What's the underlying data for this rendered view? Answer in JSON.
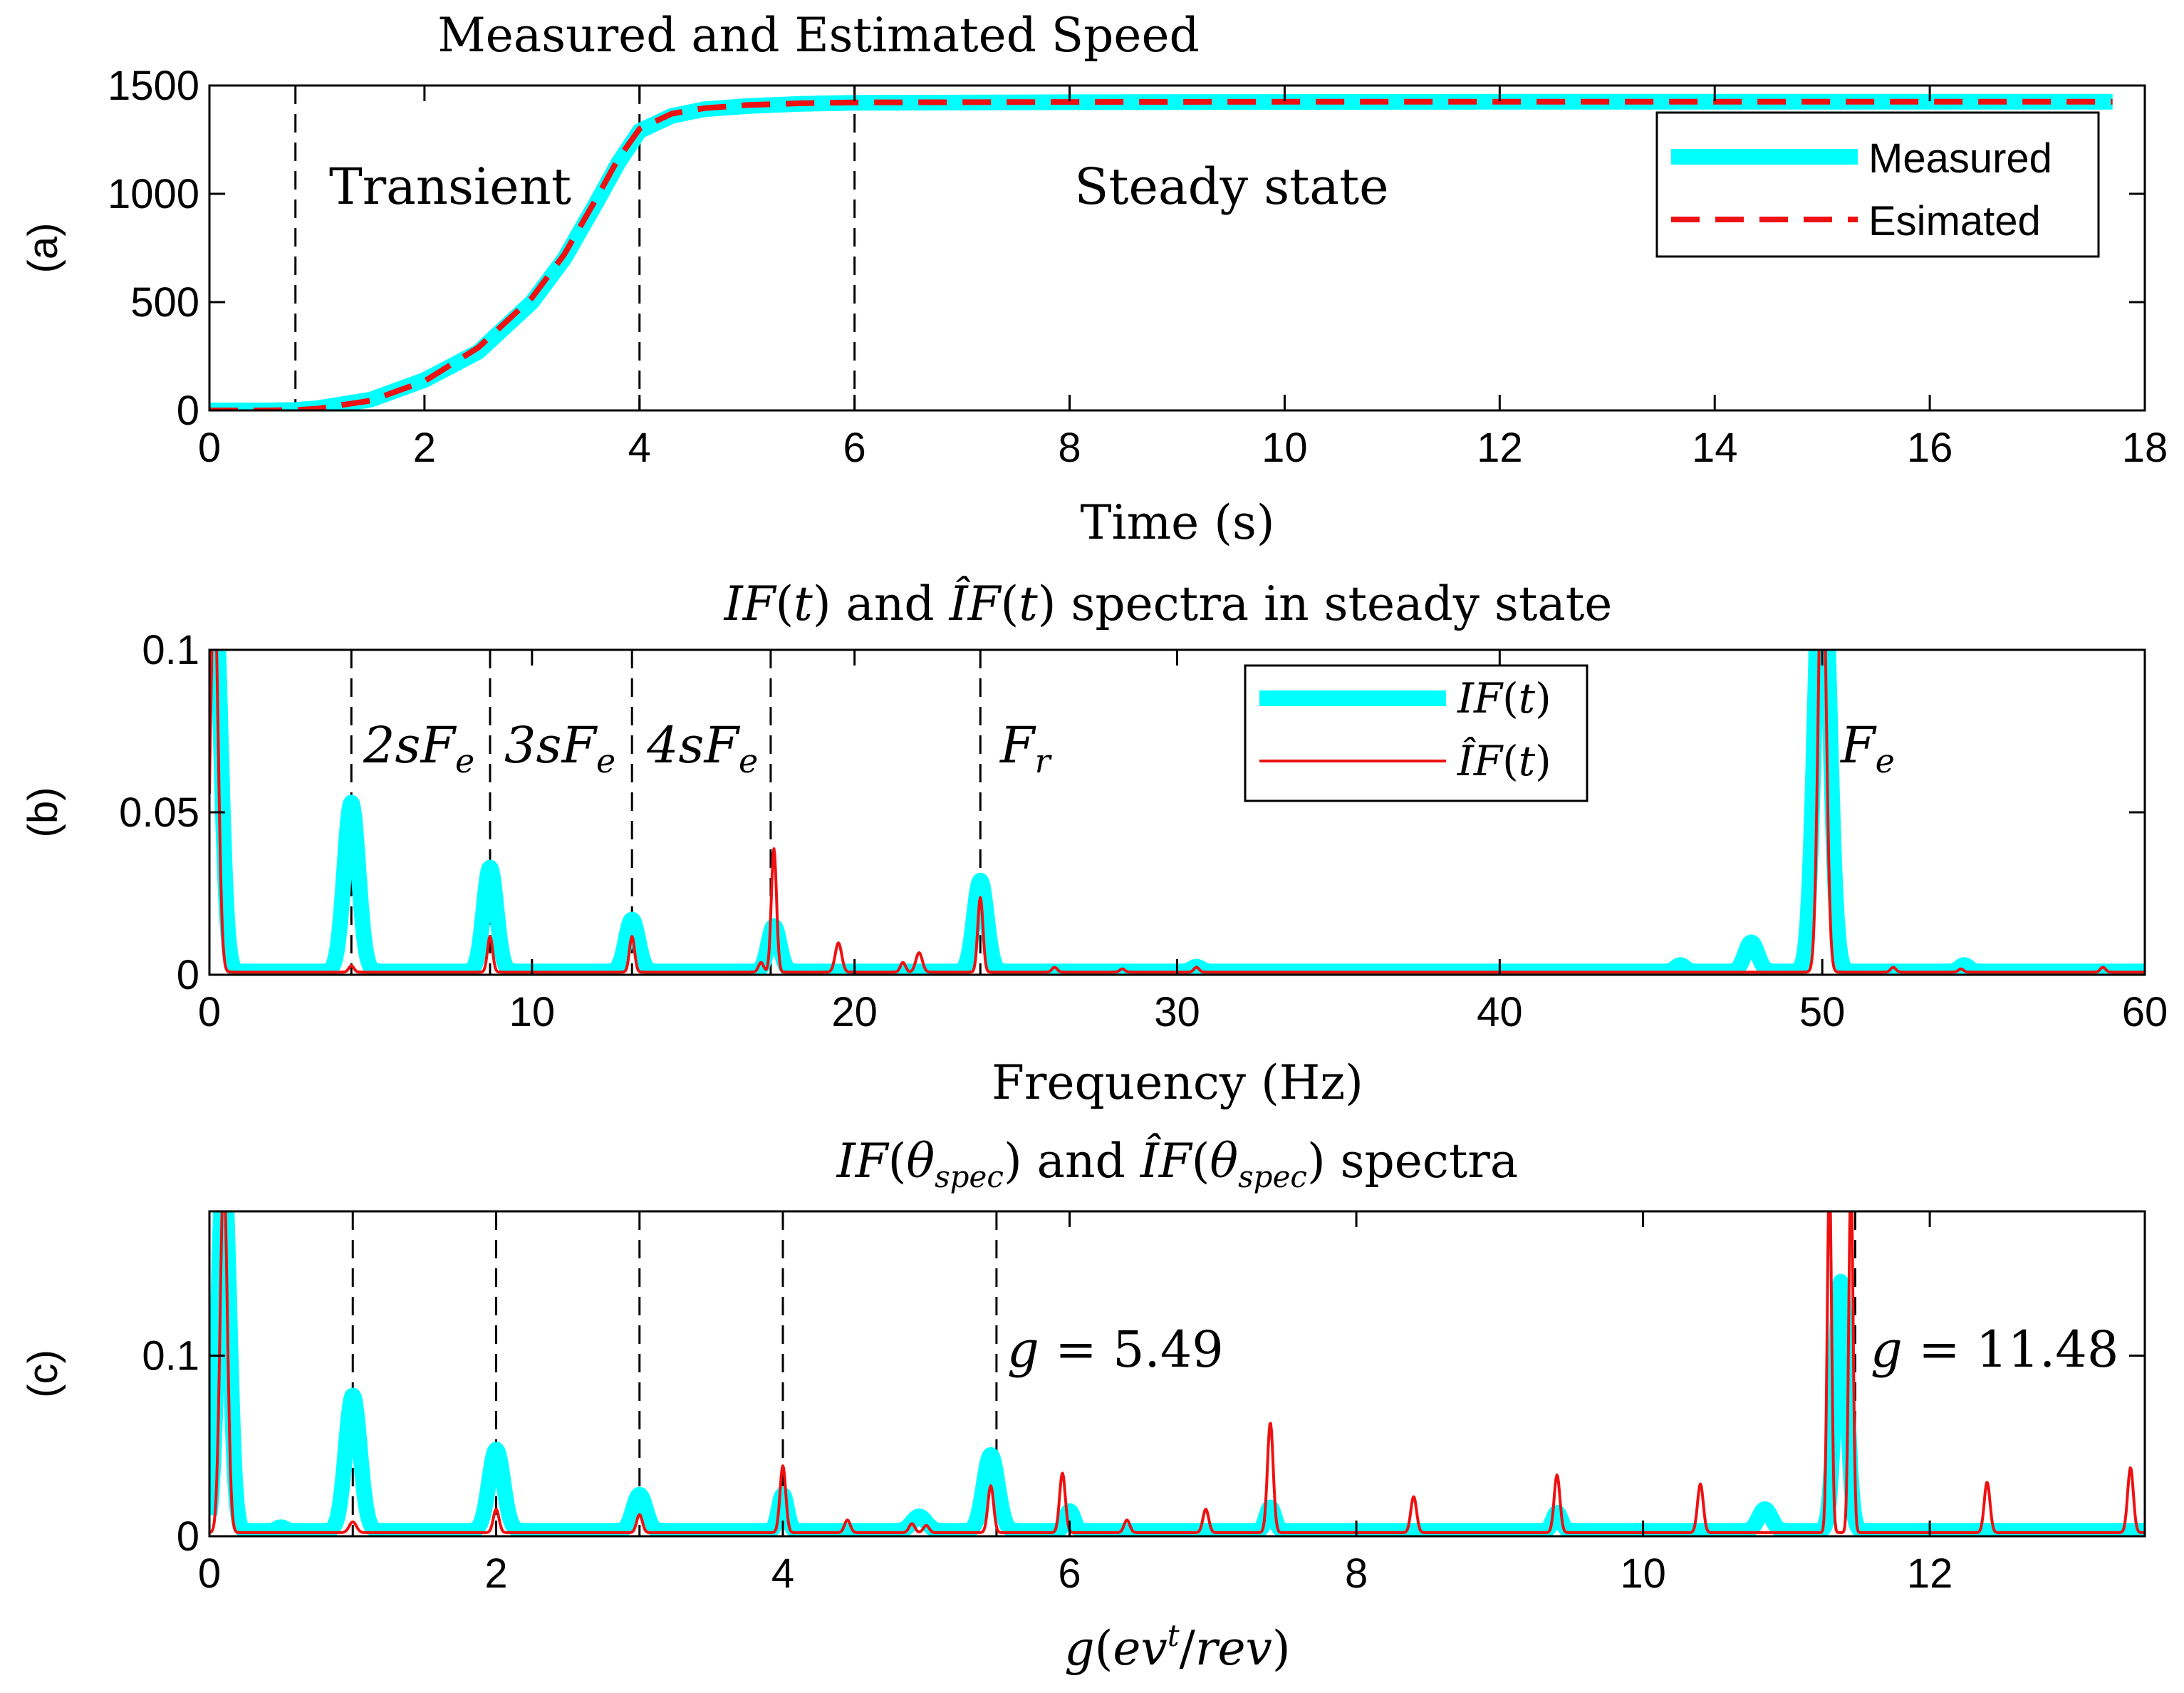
{
  "chart_data": [
    {
      "id": "a",
      "type": "line",
      "title": "Measured and Estimated Speed",
      "xlabel": "Time (s)",
      "ylabel": "(a)",
      "xlim": [
        0,
        18
      ],
      "ylim": [
        0,
        1500
      ],
      "xticks": [
        "0",
        "2",
        "4",
        "6",
        "8",
        "10",
        "12",
        "14",
        "16",
        "18"
      ],
      "yticks": [
        "0",
        "500",
        "1000",
        "1500"
      ],
      "vlines": [
        0.8,
        4,
        6
      ],
      "annotations": [
        {
          "text": "Transient",
          "x": 2.25,
          "y": 1010
        },
        {
          "text": "Steady state",
          "x": 9.5,
          "y": 1010
        }
      ],
      "legend": {
        "position": "top-right",
        "entries": [
          "Measured",
          "Esimated"
        ]
      },
      "series": [
        {
          "name": "Measured",
          "color": "#00ffff",
          "style": "solid-thick",
          "x": [
            0,
            0.5,
            0.8,
            1.0,
            1.5,
            2.0,
            2.5,
            3.0,
            3.3,
            3.6,
            3.8,
            4.0,
            4.3,
            4.6,
            5.0,
            5.5,
            6.0,
            8,
            10,
            12,
            14,
            16,
            17.7
          ],
          "y": [
            0,
            0,
            2,
            10,
            50,
            140,
            270,
            500,
            700,
            960,
            1140,
            1290,
            1360,
            1390,
            1405,
            1415,
            1420,
            1423,
            1424,
            1425,
            1425,
            1425,
            1425
          ]
        },
        {
          "name": "Esimated",
          "color": "#ee1111",
          "style": "dashed",
          "x": [
            0,
            0.5,
            0.8,
            1.0,
            1.5,
            2.0,
            2.5,
            3.0,
            3.3,
            3.6,
            3.8,
            4.0,
            4.3,
            4.6,
            5.0,
            5.5,
            6.0,
            8,
            10,
            12,
            14,
            16,
            17.7
          ],
          "y": [
            0,
            0,
            2,
            8,
            45,
            135,
            290,
            520,
            720,
            980,
            1160,
            1300,
            1370,
            1395,
            1410,
            1418,
            1422,
            1424,
            1425,
            1425,
            1425,
            1425,
            1425
          ]
        }
      ]
    },
    {
      "id": "b",
      "type": "line",
      "title": "IF(t) and ÎF(t) spectra in steady state",
      "xlabel": "Frequency (Hz)",
      "ylabel": "(b)",
      "xlim": [
        0,
        60
      ],
      "ylim": [
        0,
        0.1
      ],
      "xticks": [
        "0",
        "10",
        "20",
        "30",
        "40",
        "50",
        "60"
      ],
      "yticks": [
        "0",
        "0.05",
        "0.1"
      ],
      "vlines": [
        4.4,
        8.7,
        13.1,
        17.4,
        23.9
      ],
      "annotations": [
        {
          "text": "2sFe",
          "x": 6.5,
          "y": 0.067
        },
        {
          "text": "3sFe",
          "x": 10.9,
          "y": 0.067
        },
        {
          "text": "4sFe",
          "x": 15.3,
          "y": 0.067
        },
        {
          "text": "Fr",
          "x": 25.2,
          "y": 0.067
        },
        {
          "text": "Fe",
          "x": 51.7,
          "y": 0.067
        }
      ],
      "legend": {
        "position": "top-center",
        "entries": [
          "IF(t)",
          "ÎF(t)"
        ]
      },
      "series": [
        {
          "name": "IF(t)",
          "color": "#00ffff",
          "style": "solid-thick",
          "baseline": 0.001,
          "peaks": [
            [
              0.15,
              0.12,
              0.2
            ],
            [
              4.4,
              0.052,
              0.22
            ],
            [
              8.7,
              0.032,
              0.2
            ],
            [
              13.1,
              0.016,
              0.2
            ],
            [
              17.5,
              0.014,
              0.18
            ],
            [
              23.9,
              0.028,
              0.2
            ],
            [
              47.8,
              0.009,
              0.2
            ],
            [
              50.0,
              0.14,
              0.22
            ],
            [
              45.6,
              0.002,
              0.15
            ],
            [
              54.4,
              0.002,
              0.15
            ],
            [
              30.6,
              0.0015,
              0.15
            ]
          ]
        },
        {
          "name": "ÎF(t)",
          "color": "#ee1111",
          "style": "solid-thin",
          "baseline": 0.0008,
          "peaks": [
            [
              0.15,
              0.12,
              0.12
            ],
            [
              4.4,
              0.002,
              0.08
            ],
            [
              8.7,
              0.011,
              0.08
            ],
            [
              13.1,
              0.011,
              0.08
            ],
            [
              17.1,
              0.003,
              0.08
            ],
            [
              17.5,
              0.038,
              0.08
            ],
            [
              19.5,
              0.009,
              0.1
            ],
            [
              21.5,
              0.003,
              0.08
            ],
            [
              22.0,
              0.006,
              0.1
            ],
            [
              23.9,
              0.023,
              0.08
            ],
            [
              26.2,
              0.0015,
              0.08
            ],
            [
              28.3,
              0.001,
              0.08
            ],
            [
              30.6,
              0.0015,
              0.08
            ],
            [
              50.0,
              0.14,
              0.12
            ],
            [
              52.2,
              0.0015,
              0.08
            ],
            [
              54.3,
              0.001,
              0.08
            ],
            [
              58.7,
              0.0015,
              0.08
            ]
          ]
        }
      ]
    },
    {
      "id": "c",
      "type": "line",
      "title": "IF(θspec) and ÎF(θspec) spectra",
      "xlabel": "g(evt/rev)",
      "ylabel": "(c)",
      "xlim": [
        0,
        13.5
      ],
      "ylim": [
        0,
        0.18
      ],
      "xticks": [
        "0",
        "2",
        "4",
        "6",
        "8",
        "10",
        "12"
      ],
      "yticks": [
        "0",
        "0.1"
      ],
      "vlines": [
        1,
        2,
        3,
        4,
        5.49,
        11.48
      ],
      "annotations": [
        {
          "text": "g = 5.49",
          "x": 6.2,
          "y": 0.1
        },
        {
          "text": "g = 11.48",
          "x": 12.4,
          "y": 0.1
        }
      ],
      "series": [
        {
          "name": "IF(θspec)",
          "color": "#00ffff",
          "style": "solid-thick",
          "baseline": 0.003,
          "peaks": [
            [
              0.1,
              0.2,
              0.04
            ],
            [
              0.5,
              0.002,
              0.03
            ],
            [
              1.0,
              0.075,
              0.05
            ],
            [
              2.0,
              0.045,
              0.05
            ],
            [
              3.0,
              0.02,
              0.045
            ],
            [
              4.0,
              0.02,
              0.03
            ],
            [
              4.95,
              0.008,
              0.05
            ],
            [
              5.45,
              0.042,
              0.05
            ],
            [
              6.0,
              0.011,
              0.03
            ],
            [
              7.4,
              0.013,
              0.03
            ],
            [
              9.4,
              0.01,
              0.03
            ],
            [
              10.85,
              0.012,
              0.045
            ],
            [
              11.38,
              0.138,
              0.04
            ]
          ]
        },
        {
          "name": "ÎF(θspec)",
          "color": "#ee1111",
          "style": "solid-thin",
          "baseline": 0.002,
          "peaks": [
            [
              0.1,
              0.2,
              0.025
            ],
            [
              1.0,
              0.006,
              0.025
            ],
            [
              2.0,
              0.013,
              0.02
            ],
            [
              3.0,
              0.01,
              0.02
            ],
            [
              4.0,
              0.037,
              0.02
            ],
            [
              4.45,
              0.007,
              0.02
            ],
            [
              4.9,
              0.005,
              0.02
            ],
            [
              5.0,
              0.004,
              0.02
            ],
            [
              5.45,
              0.026,
              0.02
            ],
            [
              5.95,
              0.033,
              0.02
            ],
            [
              6.4,
              0.007,
              0.02
            ],
            [
              6.95,
              0.013,
              0.02
            ],
            [
              7.4,
              0.061,
              0.02
            ],
            [
              8.4,
              0.02,
              0.02
            ],
            [
              9.4,
              0.032,
              0.02
            ],
            [
              10.4,
              0.027,
              0.02
            ],
            [
              11.3,
              0.2,
              0.015
            ],
            [
              11.45,
              0.2,
              0.015
            ],
            [
              12.4,
              0.028,
              0.02
            ],
            [
              13.4,
              0.036,
              0.02
            ]
          ]
        }
      ]
    }
  ]
}
